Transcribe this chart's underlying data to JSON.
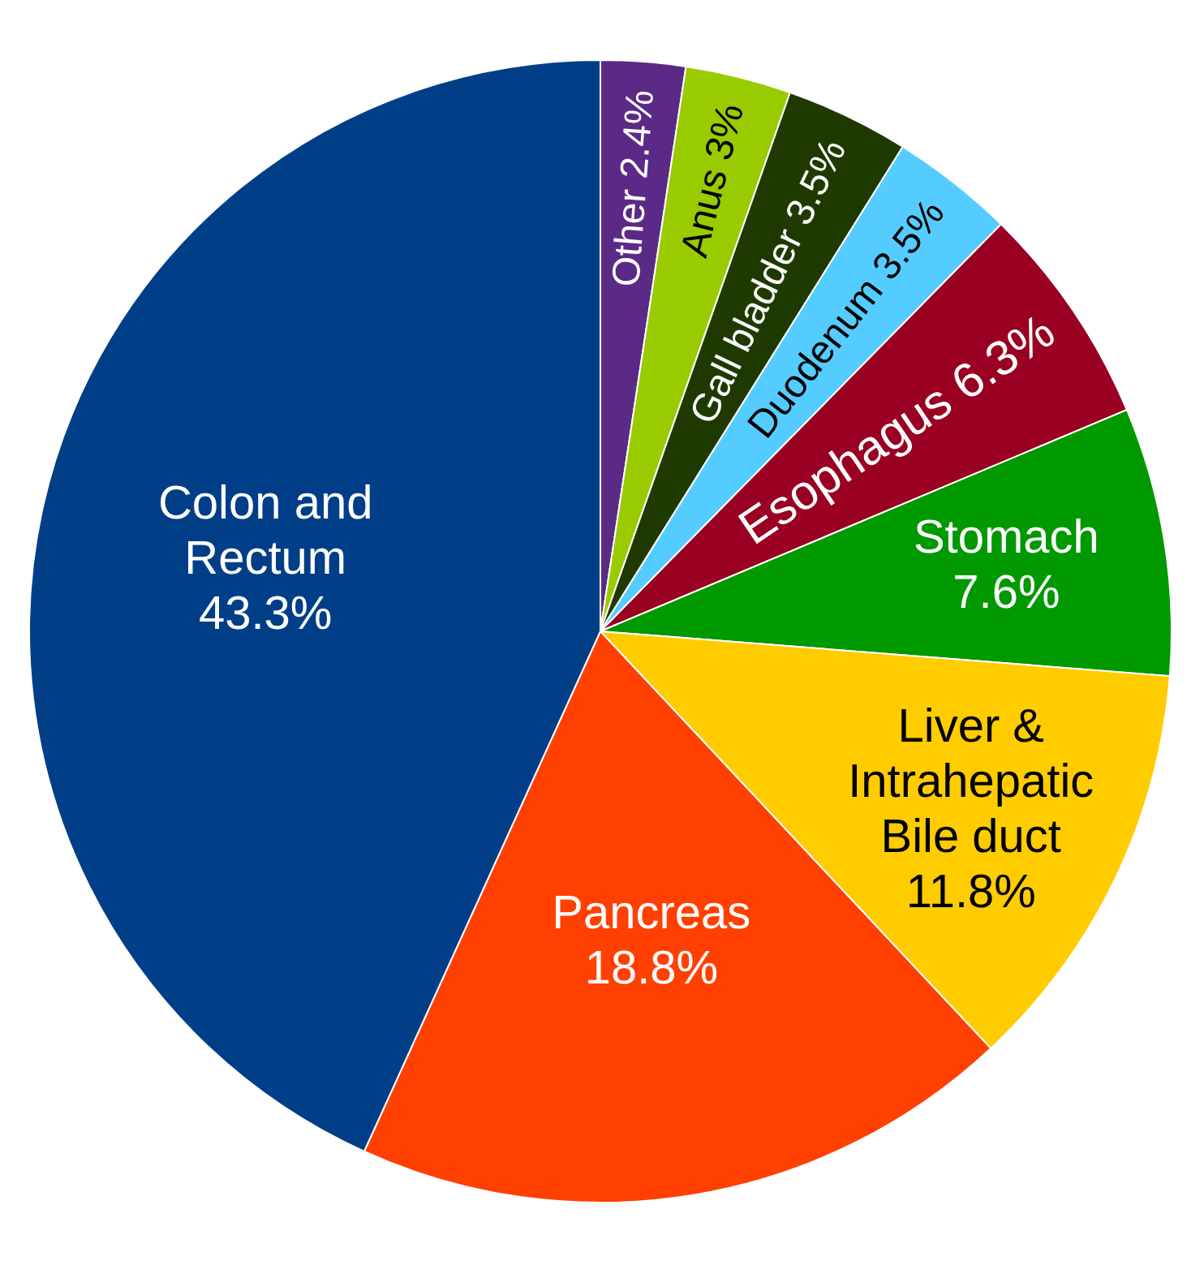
{
  "chart_data": {
    "type": "pie",
    "categories": [
      "Other",
      "Anus",
      "Gall bladder",
      "Duodenum",
      "Esophagus",
      "Stomach",
      "Liver & Intrahepatic Bile duct",
      "Pancreas",
      "Colon and Rectum"
    ],
    "values": [
      2.4,
      3,
      3.5,
      3.5,
      6.3,
      7.6,
      11.8,
      18.8,
      43.3
    ],
    "value_labels": [
      "2.4%",
      "3%",
      "3.5%",
      "3.5%",
      "6.3%",
      "7.6%",
      "11.8%",
      "18.8%",
      "43.3%"
    ],
    "colors": [
      "#5b2a86",
      "#99cc00",
      "#1f3a00",
      "#55ccff",
      "#990022",
      "#009900",
      "#ffcc00",
      "#ff4000",
      "#003f87"
    ]
  }
}
